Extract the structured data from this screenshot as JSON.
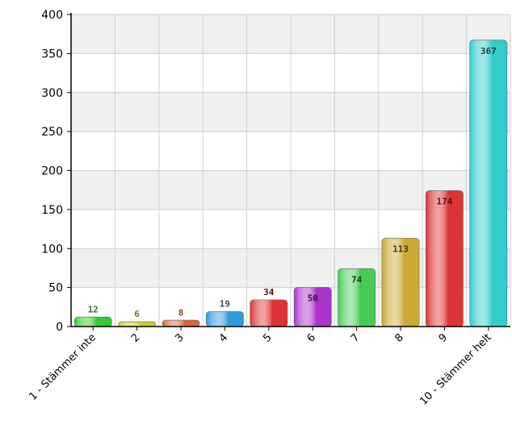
{
  "chart_data": {
    "type": "bar",
    "categories": [
      "1 - Stämmer inte",
      "2",
      "3",
      "4",
      "5",
      "6",
      "7",
      "8",
      "9",
      "10 - Stämmer helt"
    ],
    "values": [
      12,
      6,
      8,
      19,
      34,
      50,
      74,
      113,
      174,
      367
    ],
    "data_labels": [
      "12",
      "6",
      "8",
      "19",
      "34",
      "50",
      "74",
      "113",
      "174",
      "367"
    ],
    "ylim": [
      0,
      400
    ],
    "yticks": [
      0,
      50,
      100,
      150,
      200,
      250,
      300,
      350,
      400
    ],
    "ytick_labels": [
      "0",
      "50",
      "100",
      "150",
      "200",
      "250",
      "300",
      "350",
      "400"
    ],
    "grid": true,
    "colors": [
      "#33cc33",
      "#cccc22",
      "#dd6633",
      "#3399dd",
      "#dd3333",
      "#aa33cc",
      "#44cc55",
      "#ccaa33",
      "#dd3333",
      "#33cccc"
    ],
    "label_colors": [
      "#2a7a2a",
      "#777722",
      "#884422",
      "#225577",
      "#551111",
      "#331144",
      "#114411",
      "#443311",
      "#551111",
      "#114444"
    ],
    "title": "",
    "xlabel": "",
    "ylabel": ""
  }
}
